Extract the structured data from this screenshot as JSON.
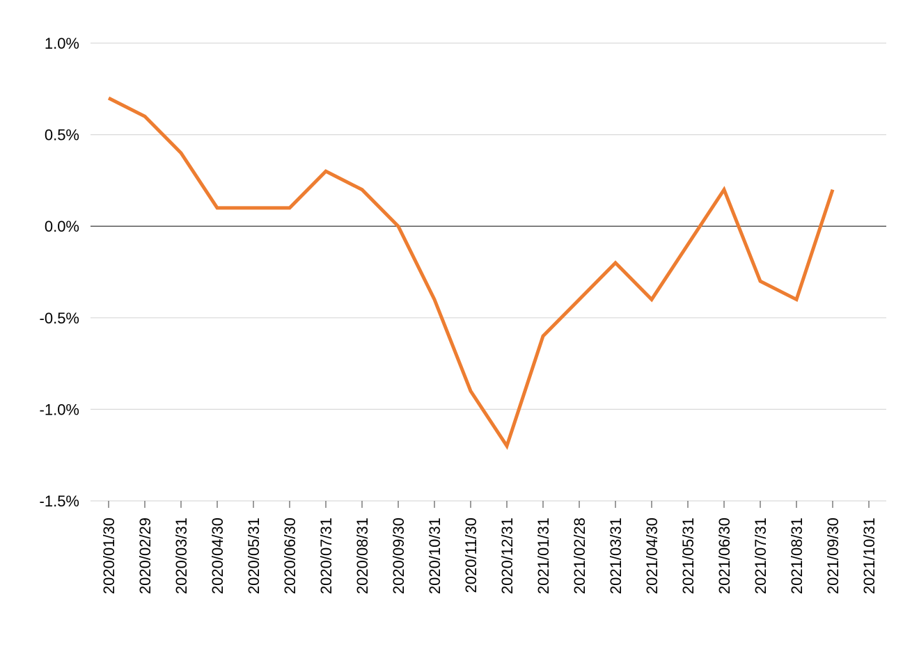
{
  "chart_data": {
    "type": "line",
    "title": "",
    "xlabel": "",
    "ylabel": "",
    "ylim": [
      -1.5,
      1.0
    ],
    "yticks": [
      1.0,
      0.5,
      0.0,
      -0.5,
      -1.0,
      -1.5
    ],
    "ytick_labels": [
      "1.0%",
      "0.5%",
      "0.0%",
      "-0.5%",
      "-1.0%",
      "-1.5%"
    ],
    "grid": true,
    "categories": [
      "2020/01/30",
      "2020/02/29",
      "2020/03/31",
      "2020/04/30",
      "2020/05/31",
      "2020/06/30",
      "2020/07/31",
      "2020/08/31",
      "2020/09/30",
      "2020/10/31",
      "2020/11/30",
      "2020/12/31",
      "2021/01/31",
      "2021/02/28",
      "2021/03/31",
      "2021/04/30",
      "2021/05/31",
      "2021/06/30",
      "2021/07/31",
      "2021/08/31",
      "2021/09/30",
      "2021/10/31"
    ],
    "series": [
      {
        "color": "#ED7D31",
        "values": [
          0.7,
          0.6,
          0.4,
          0.1,
          0.1,
          0.1,
          0.3,
          0.2,
          0.0,
          -0.4,
          -0.9,
          -1.2,
          -0.6,
          -0.4,
          -0.2,
          -0.4,
          -0.1,
          0.2,
          -0.3,
          -0.4,
          0.2,
          null
        ]
      }
    ],
    "colors": {
      "gridline": "#D9D9D9",
      "zero_line": "#595959",
      "axis": "#595959"
    }
  }
}
